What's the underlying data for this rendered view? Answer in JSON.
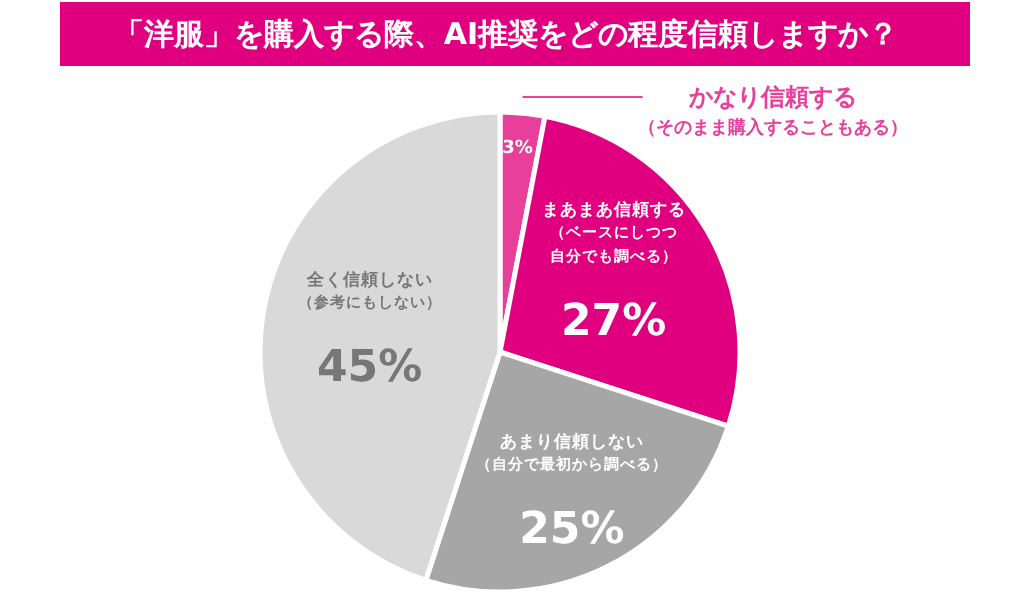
{
  "chart_data": {
    "type": "pie",
    "title": "「洋服」を購入する際、AI推奨をどの程度信頼しますか？",
    "categories": [
      "かなり信頼する（そのまま購入することもある）",
      "まあまあ信頼する（ベースにしつつ自分でも調べる）",
      "あまり信頼しない（自分で最初から調べる）",
      "全く信頼しない（参考にもしない）"
    ],
    "values": [
      3,
      27,
      25,
      45
    ],
    "colors": [
      "#e8409a",
      "#e0007f",
      "#a6a6a6",
      "#d9d9d9"
    ],
    "value_labels": [
      "3%",
      "27%",
      "25%",
      "45%"
    ]
  }
}
